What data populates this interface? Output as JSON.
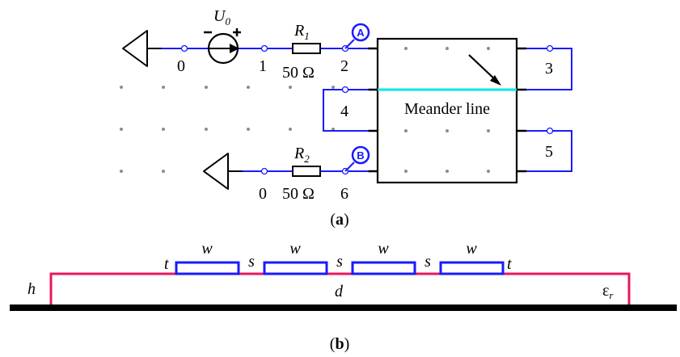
{
  "circuit": {
    "source": {
      "symbol": "U",
      "subscript": "0"
    },
    "resistor1": {
      "symbol": "R",
      "subscript": "1",
      "value": "50 Ω"
    },
    "resistor2": {
      "symbol": "R",
      "subscript": "2",
      "value": "50 Ω"
    },
    "port_a": "A",
    "port_b": "B",
    "block_label": "Meander line",
    "nodes": {
      "n0_top": "0",
      "n1": "1",
      "n2": "2",
      "n3": "3",
      "n4": "4",
      "n5": "5",
      "n0_bottom": "0",
      "n6": "6"
    },
    "caption": "(a)"
  },
  "cross_section": {
    "conductors": [
      "w",
      "w",
      "w",
      "w"
    ],
    "gaps": [
      "s",
      "s",
      "s"
    ],
    "t_left": "t",
    "t_right": "t",
    "h": "h",
    "d": "d",
    "epsilon": {
      "symbol": "ε",
      "subscript": "r"
    },
    "caption": "(b)"
  },
  "colors": {
    "wire": "#1a1aff",
    "highlight": "#00e6e6",
    "dielectric": "#e8175d",
    "ground": "#000000"
  }
}
